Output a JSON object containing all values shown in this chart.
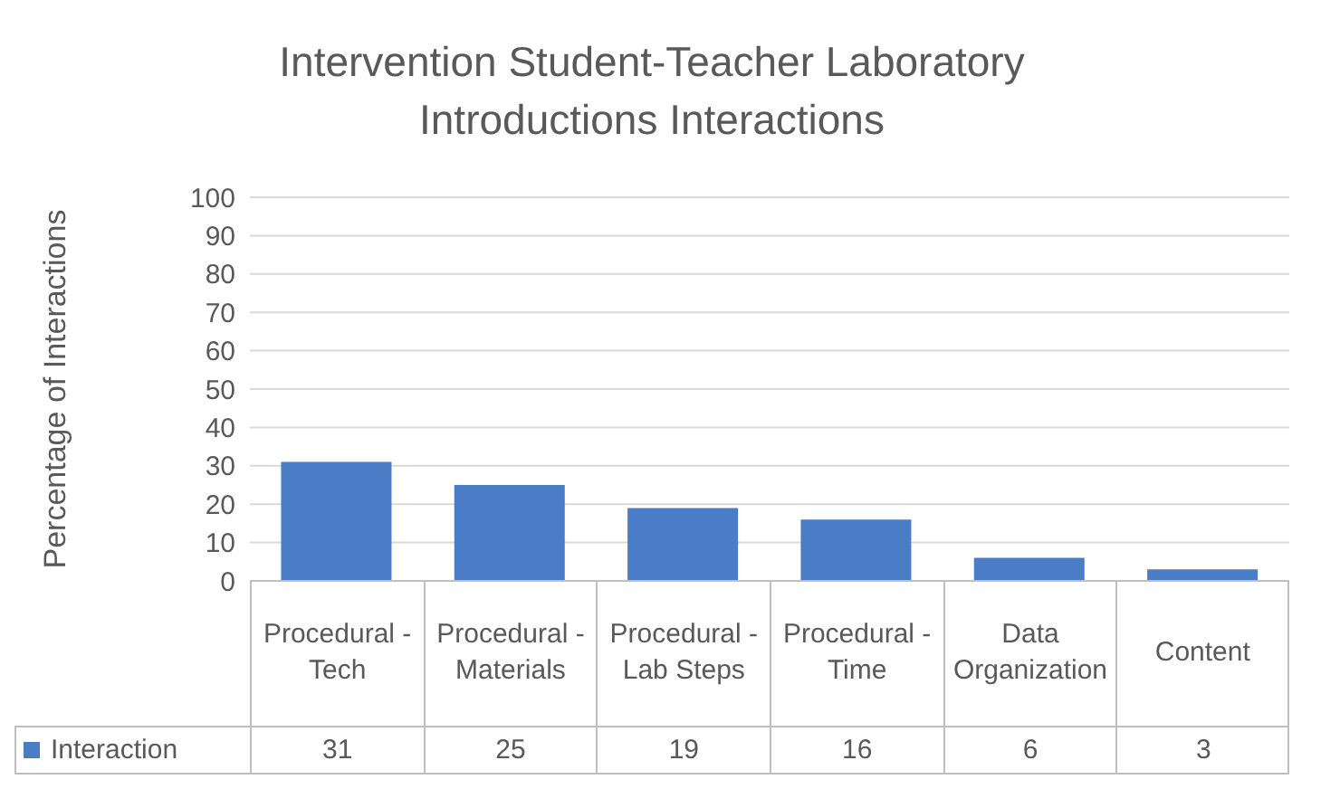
{
  "chart_data": {
    "type": "bar",
    "title": "Intervention Student-Teacher Laboratory Introductions Interactions",
    "ylabel": "Percentage of Interactions",
    "categories": [
      "Procedural - Tech",
      "Procedural - Materials",
      "Procedural - Lab Steps",
      "Procedural - Time",
      "Data Organization",
      "Content"
    ],
    "series": [
      {
        "name": "Interaction",
        "color": "#4a7dc5",
        "values": [
          31,
          25,
          19,
          16,
          6,
          3
        ]
      }
    ],
    "ylim": [
      0,
      100
    ],
    "yticks": [
      0,
      10,
      20,
      30,
      40,
      50,
      60,
      70,
      80,
      90,
      100
    ],
    "grid": "y",
    "legend": "bottom",
    "data_labels": true
  }
}
